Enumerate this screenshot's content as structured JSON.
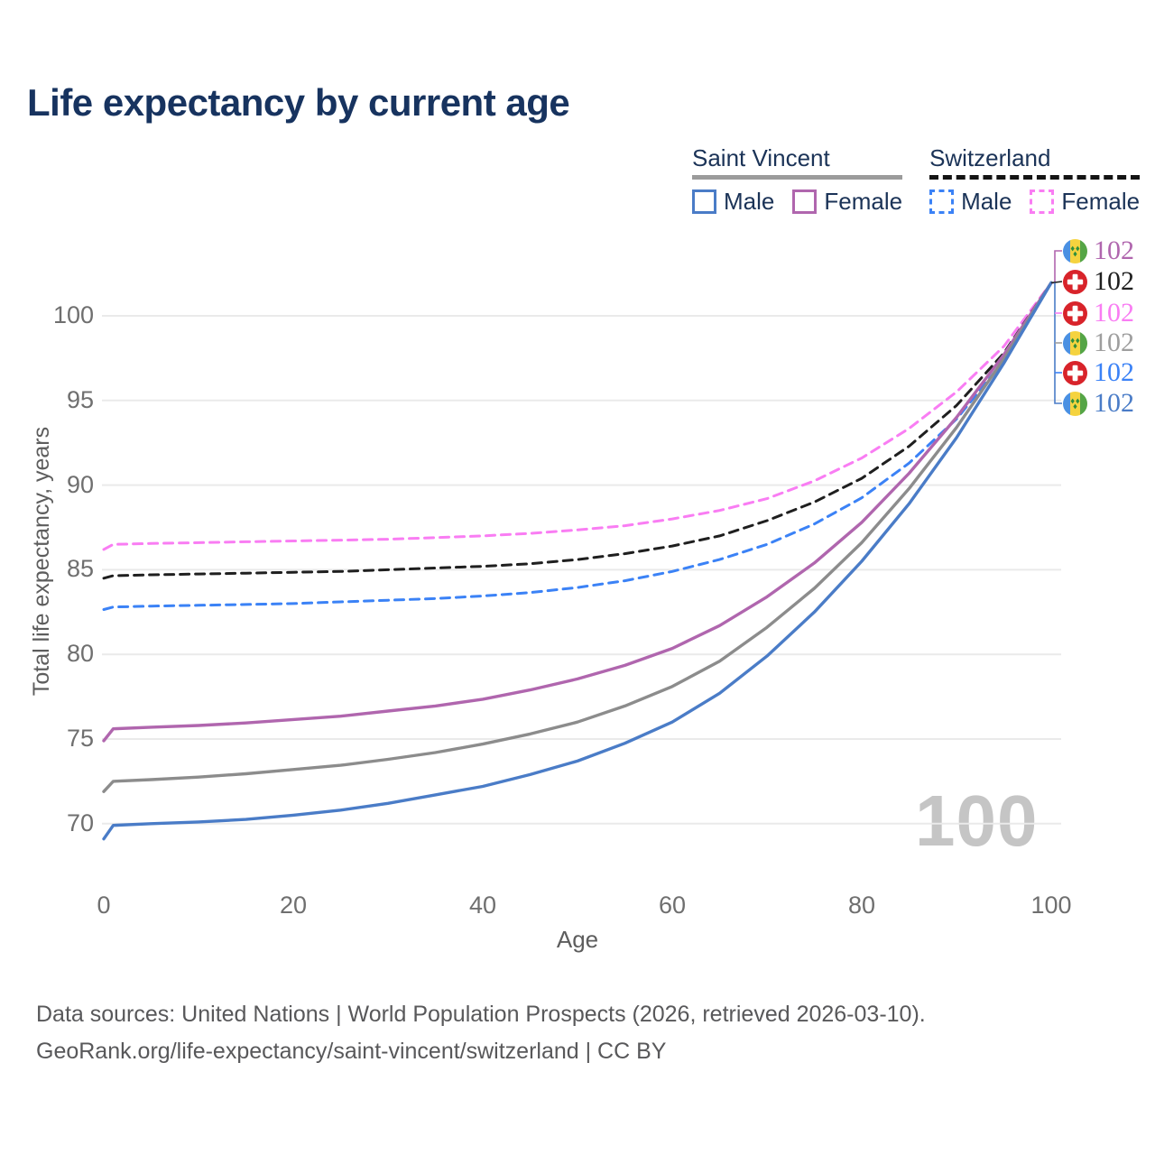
{
  "title": "Life expectancy by current age",
  "watermark": "100",
  "legend": {
    "groups": [
      {
        "title": "Saint Vincent",
        "line_style": "solid",
        "underline_color": "#9b9b9b",
        "items": [
          {
            "label": "Male",
            "color": "#4a7cc7"
          },
          {
            "label": "Female",
            "color": "#b066ae"
          }
        ]
      },
      {
        "title": "Switzerland",
        "line_style": "dashed",
        "underline_color": "#141414",
        "items": [
          {
            "label": "Male",
            "color": "#3b82f6"
          },
          {
            "label": "Female",
            "color": "#f97df3"
          }
        ]
      }
    ]
  },
  "footer": {
    "line1": "Data sources: United Nations | World Population Prospects (2026, retrieved 2026-03-10).",
    "line2": "GeoRank.org/life-expectancy/saint-vincent/switzerland | CC BY"
  },
  "chart_data": {
    "type": "line",
    "title": "Life expectancy by current age",
    "xlabel": "Age",
    "ylabel": "Total life expectancy, years",
    "xlim": [
      0,
      100
    ],
    "ylim": [
      67,
      103
    ],
    "xticks": [
      0,
      20,
      40,
      60,
      80,
      100
    ],
    "yticks": [
      70,
      75,
      80,
      85,
      90,
      95,
      100
    ],
    "grid": "horizontal",
    "legend_position": "top-right",
    "x": [
      0,
      1,
      5,
      10,
      15,
      20,
      25,
      30,
      35,
      40,
      45,
      50,
      55,
      60,
      65,
      70,
      75,
      80,
      85,
      90,
      95,
      100
    ],
    "series": [
      {
        "name": "Switzerland Female",
        "country": "switzerland",
        "sex": "female",
        "style": "dashed",
        "color": "#f97df3",
        "values": [
          86.2,
          86.5,
          86.55,
          86.6,
          86.65,
          86.7,
          86.75,
          86.8,
          86.9,
          87.0,
          87.15,
          87.35,
          87.6,
          88.0,
          88.5,
          89.2,
          90.25,
          91.6,
          93.35,
          95.5,
          98.2,
          101.95
        ]
      },
      {
        "name": "Switzerland Total",
        "country": "switzerland",
        "sex": "both",
        "style": "dashed",
        "color": "#1f1f1f",
        "values": [
          84.5,
          84.65,
          84.7,
          84.75,
          84.8,
          84.85,
          84.9,
          85.0,
          85.1,
          85.2,
          85.35,
          85.6,
          85.95,
          86.4,
          87.0,
          87.9,
          89.0,
          90.4,
          92.3,
          94.7,
          97.8,
          101.95
        ]
      },
      {
        "name": "Switzerland Male",
        "country": "switzerland",
        "sex": "male",
        "style": "dashed",
        "color": "#3b82f6",
        "values": [
          82.65,
          82.8,
          82.85,
          82.9,
          82.95,
          83.0,
          83.1,
          83.2,
          83.3,
          83.45,
          83.65,
          83.95,
          84.35,
          84.9,
          85.6,
          86.5,
          87.7,
          89.25,
          91.3,
          93.9,
          97.35,
          101.95
        ]
      },
      {
        "name": "Saint Vincent Female",
        "country": "saint-vincent",
        "sex": "female",
        "style": "solid",
        "color": "#b066ae",
        "values": [
          74.9,
          75.6,
          75.7,
          75.8,
          75.95,
          76.15,
          76.35,
          76.65,
          76.95,
          77.35,
          77.9,
          78.55,
          79.35,
          80.35,
          81.7,
          83.4,
          85.4,
          87.8,
          90.7,
          94.0,
          97.7,
          101.95
        ]
      },
      {
        "name": "Saint Vincent Total",
        "country": "saint-vincent",
        "sex": "both",
        "style": "solid",
        "color": "#8c8c8c",
        "values": [
          71.9,
          72.5,
          72.6,
          72.75,
          72.95,
          73.2,
          73.45,
          73.8,
          74.2,
          74.7,
          75.3,
          76.0,
          76.95,
          78.1,
          79.6,
          81.6,
          83.9,
          86.6,
          89.8,
          93.4,
          97.45,
          101.95
        ]
      },
      {
        "name": "Saint Vincent Male",
        "country": "saint-vincent",
        "sex": "male",
        "style": "solid",
        "color": "#4a7cc7",
        "values": [
          69.1,
          69.9,
          70.0,
          70.1,
          70.25,
          70.5,
          70.8,
          71.2,
          71.7,
          72.2,
          72.9,
          73.7,
          74.75,
          76.0,
          77.7,
          79.9,
          82.5,
          85.5,
          88.9,
          92.8,
          97.2,
          101.95
        ]
      }
    ],
    "end_labels": [
      {
        "text": "102",
        "series": "Saint Vincent Female",
        "flag": "saint-vincent",
        "color": "#b066ae"
      },
      {
        "text": "102",
        "series": "Switzerland Total",
        "flag": "switzerland",
        "color": "#1f1f1f"
      },
      {
        "text": "102",
        "series": "Switzerland Female",
        "flag": "switzerland",
        "color": "#f97df3"
      },
      {
        "text": "102",
        "series": "Saint Vincent Total",
        "flag": "saint-vincent",
        "color": "#9e9e9e"
      },
      {
        "text": "102",
        "series": "Switzerland Male",
        "flag": "switzerland",
        "color": "#3b82f6"
      },
      {
        "text": "102",
        "series": "Saint Vincent Male",
        "flag": "saint-vincent",
        "color": "#4a7cc7"
      }
    ]
  }
}
